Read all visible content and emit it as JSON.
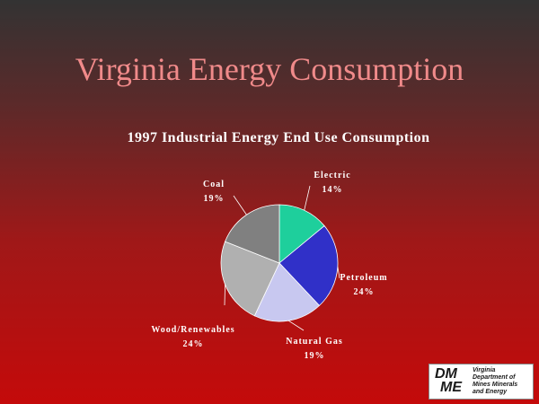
{
  "slide": {
    "title": "Virginia Energy Consumption"
  },
  "chart_data": {
    "type": "pie",
    "title": "1997 Industrial Energy End Use Consumption",
    "slices": [
      {
        "label": "Electric",
        "value": 14,
        "display": "14%",
        "color": "#1ecf9c"
      },
      {
        "label": "Petroleum",
        "value": 24,
        "display": "24%",
        "color": "#3030c8"
      },
      {
        "label": "Natural Gas",
        "value": 19,
        "display": "19%",
        "color": "#c8c8f0"
      },
      {
        "label": "Wood/Renewables",
        "value": 24,
        "display": "24%",
        "color": "#b0b0b0"
      },
      {
        "label": "Coal",
        "value": 19,
        "display": "19%",
        "color": "#808080"
      }
    ]
  },
  "logo": {
    "mark_line1": "DM",
    "mark_line2": "ME",
    "text": [
      "Virginia",
      "Department of",
      "Mines Minerals",
      "and Energy"
    ]
  }
}
